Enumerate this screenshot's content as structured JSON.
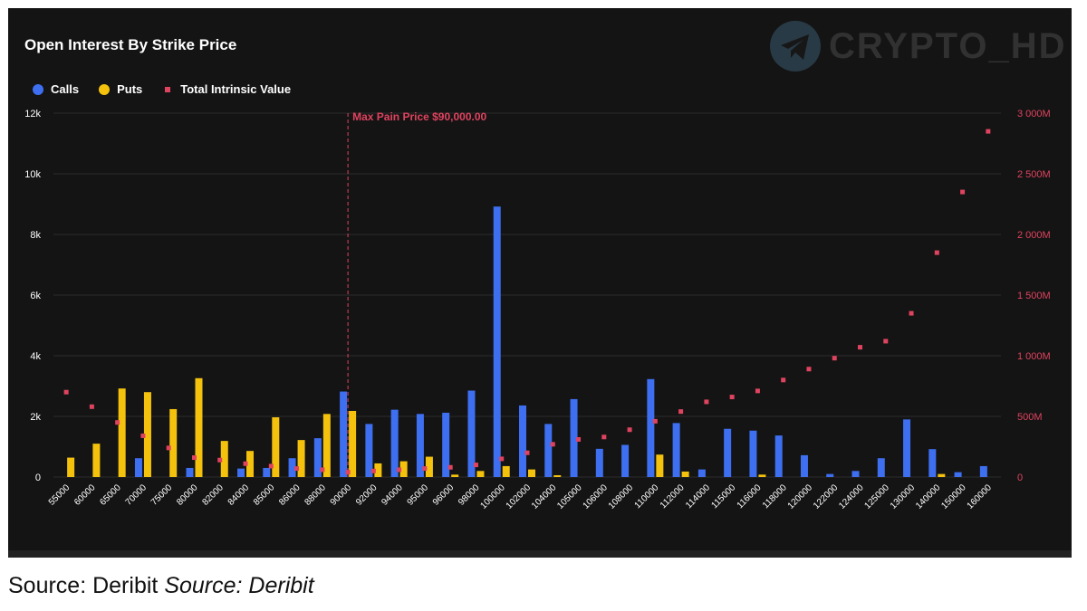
{
  "colors": {
    "background": "#141414",
    "calls": "#3d6ff0",
    "puts": "#f4c20d",
    "intrinsic": "#e0435f",
    "grid": "#2c2c2c",
    "axis_text_left": "#ffffff",
    "axis_text_right": "#e0435f"
  },
  "watermark": {
    "text": "CRYPTO_HD",
    "icon": "telegram-icon"
  },
  "caption": {
    "plain": "Source: Deribit",
    "italic": "Source: Deribit"
  },
  "chart_data": {
    "type": "bar",
    "title": "Open Interest By Strike Price",
    "legend": {
      "placement": "top-left",
      "items": [
        "Calls",
        "Puts",
        "Total Intrinsic Value"
      ]
    },
    "categories": [
      "55000",
      "60000",
      "65000",
      "70000",
      "75000",
      "80000",
      "82000",
      "84000",
      "85000",
      "86000",
      "88000",
      "90000",
      "92000",
      "94000",
      "95000",
      "96000",
      "98000",
      "100000",
      "102000",
      "104000",
      "105000",
      "106000",
      "108000",
      "110000",
      "112000",
      "114000",
      "115000",
      "116000",
      "118000",
      "120000",
      "122000",
      "124000",
      "125000",
      "130000",
      "140000",
      "150000",
      "160000"
    ],
    "series": [
      {
        "name": "Calls",
        "axis": "left",
        "values": [
          0,
          0,
          0,
          620,
          0,
          300,
          0,
          280,
          300,
          620,
          1280,
          2820,
          1750,
          2220,
          2080,
          2120,
          2850,
          8920,
          2360,
          1750,
          2570,
          930,
          1060,
          3230,
          1780,
          250,
          1590,
          1530,
          1370,
          720,
          100,
          200,
          620,
          1900,
          920,
          160,
          360
        ]
      },
      {
        "name": "Puts",
        "axis": "left",
        "values": [
          640,
          1100,
          2920,
          2800,
          2240,
          3260,
          1190,
          860,
          1970,
          1220,
          2080,
          2180,
          450,
          520,
          670,
          80,
          200,
          360,
          250,
          60,
          0,
          0,
          0,
          740,
          180,
          0,
          0,
          80,
          0,
          0,
          0,
          0,
          0,
          0,
          100,
          0,
          0
        ]
      },
      {
        "name": "Total Intrinsic Value",
        "type": "scatter",
        "axis": "right",
        "values": [
          700,
          580,
          450,
          340,
          240,
          160,
          140,
          110,
          90,
          70,
          60,
          40,
          50,
          60,
          70,
          80,
          100,
          150,
          200,
          270,
          310,
          330,
          390,
          460,
          540,
          620,
          660,
          710,
          800,
          890,
          980,
          1070,
          1120,
          1350,
          1850,
          2350,
          2850
        ]
      }
    ],
    "y_left": {
      "ylim": [
        0,
        12000
      ],
      "ticks": [
        0,
        2000,
        4000,
        6000,
        8000,
        10000,
        12000
      ],
      "tick_labels": [
        "0",
        "2k",
        "4k",
        "6k",
        "8k",
        "10k",
        "12k"
      ]
    },
    "y_right": {
      "ylim": [
        0,
        3000
      ],
      "ticks": [
        0,
        500,
        1000,
        1500,
        2000,
        2500,
        3000
      ],
      "tick_labels": [
        "0",
        "500M",
        "1 000M",
        "1 500M",
        "2 000M",
        "2 500M",
        "3 000M"
      ]
    },
    "annotation": {
      "label": "Max Pain Price $90,000.00",
      "category": "90000"
    },
    "grid": true
  }
}
